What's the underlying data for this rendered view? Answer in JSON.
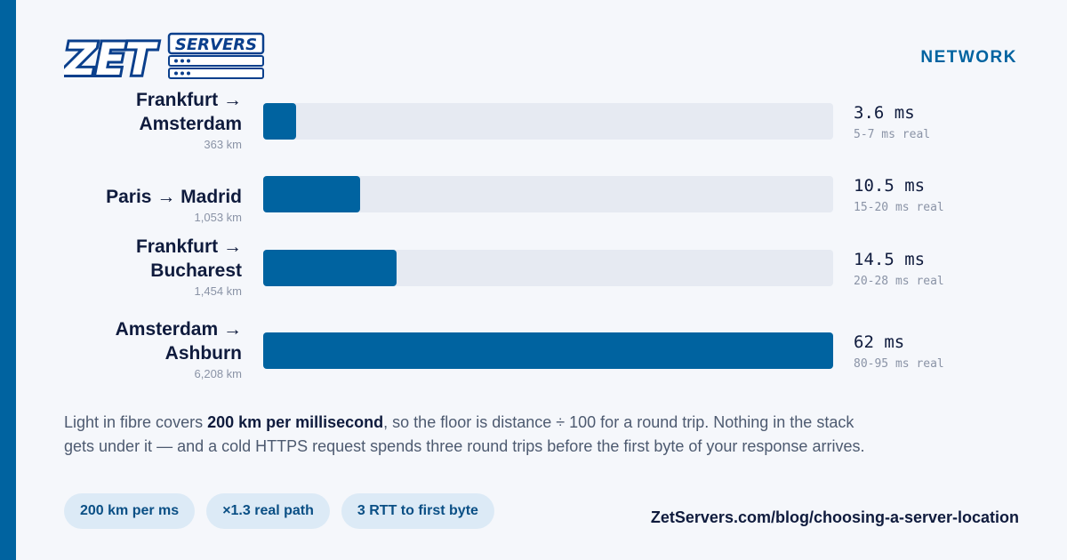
{
  "brand": {
    "logo_text": "ZETSERVERS",
    "colors": {
      "accent": "#0063a0",
      "track": "#e6eaf2",
      "text": "#0f1b3d",
      "muted": "#8a93a6",
      "chip_bg": "#dceaf6"
    }
  },
  "section_label": "NETWORK",
  "chart_data": {
    "type": "bar",
    "orientation": "horizontal",
    "categories": [
      {
        "line1": "Frankfurt →",
        "line2": "Amsterdam",
        "distance": "363 km"
      },
      {
        "line1": "Paris → Madrid",
        "line2": "",
        "distance": "1,053 km"
      },
      {
        "line1": "Frankfurt →",
        "line2": "Bucharest",
        "distance": "1,454 km"
      },
      {
        "line1": "Amsterdam →",
        "line2": "Ashburn",
        "distance": "6,208 km"
      }
    ],
    "values": [
      3.6,
      10.5,
      14.5,
      62
    ],
    "value_labels": [
      "3.6 ms",
      "10.5 ms",
      "14.5 ms",
      "62 ms"
    ],
    "real_ranges": [
      "5-7 ms real",
      "15-20 ms real",
      "20-28 ms real",
      "80-95 ms real"
    ],
    "xlim": [
      0,
      62
    ],
    "grid": false,
    "title": "",
    "xlabel": "",
    "ylabel": ""
  },
  "note": {
    "part1": "Light in fibre covers ",
    "bold": "200 km per millisecond",
    "part2": ", so the floor is distance ÷ 100 for a round trip. Nothing in the stack gets under it — and a cold HTTPS request spends three round trips before the first byte of your response arrives."
  },
  "chips": [
    "200 km per ms",
    "×1.3 real path",
    "3 RTT to first byte"
  ],
  "footer_url": "ZetServers.com/blog/choosing-a-server-location"
}
